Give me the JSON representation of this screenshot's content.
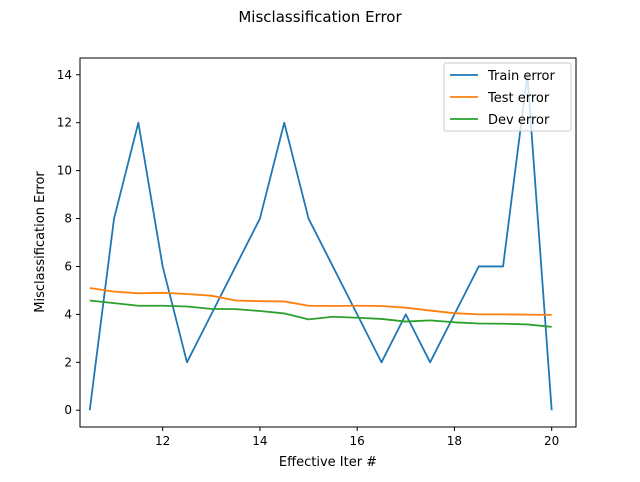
{
  "chart_data": {
    "type": "line",
    "title": "Misclassification Error",
    "xlabel": "Effective Iter #",
    "ylabel": "Misclassification Error",
    "xlim": [
      10.3,
      20.5
    ],
    "ylim": [
      -0.7,
      14.7
    ],
    "x_ticks": [
      12,
      14,
      16,
      18,
      20
    ],
    "y_ticks": [
      0,
      2,
      4,
      6,
      8,
      10,
      12,
      14
    ],
    "grid": false,
    "legend": "top-right",
    "x": [
      10.5,
      11,
      11.5,
      12,
      12.5,
      13,
      13.5,
      14,
      14.5,
      15,
      15.5,
      16,
      16.5,
      17,
      17.5,
      18,
      18.5,
      19,
      19.5,
      20
    ],
    "series": [
      {
        "name": "Train error",
        "color": "#1f77b4",
        "values": [
          0,
          8,
          12,
          6,
          2,
          4,
          6,
          8,
          12,
          8,
          6,
          4,
          2,
          4,
          2,
          4,
          6,
          6,
          14,
          0
        ]
      },
      {
        "name": "Test error",
        "color": "#ff7f0e",
        "values": [
          5.1,
          4.95,
          4.88,
          4.9,
          4.85,
          4.78,
          4.58,
          4.55,
          4.54,
          4.36,
          4.35,
          4.36,
          4.35,
          4.28,
          4.16,
          4.05,
          4.0,
          4.0,
          3.99,
          3.98
        ]
      },
      {
        "name": "Dev error",
        "color": "#2ca02c",
        "values": [
          4.58,
          4.47,
          4.36,
          4.36,
          4.33,
          4.23,
          4.22,
          4.14,
          4.04,
          3.79,
          3.9,
          3.86,
          3.81,
          3.7,
          3.75,
          3.67,
          3.62,
          3.61,
          3.58,
          3.48
        ]
      }
    ]
  }
}
